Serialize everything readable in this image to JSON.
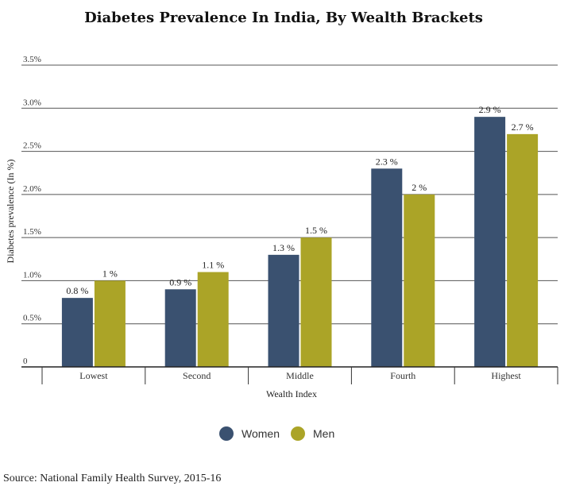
{
  "chart_data": {
    "type": "bar",
    "title": "Diabetes Prevalence In India, By Wealth Brackets",
    "xlabel": "Wealth Index",
    "ylabel": "Diabetes prevalence (In %)",
    "categories": [
      "Lowest",
      "Second",
      "Middle",
      "Fourth",
      "Highest"
    ],
    "series": [
      {
        "name": "Women",
        "color": "#3a5170",
        "values": [
          0.8,
          0.9,
          1.3,
          2.3,
          2.9
        ],
        "labels": [
          "0.8 %",
          "0.9 %",
          "1.3 %",
          "2.3 %",
          "2.9 %"
        ]
      },
      {
        "name": "Men",
        "color": "#aba427",
        "values": [
          1,
          1.1,
          1.5,
          2,
          2.7
        ],
        "labels": [
          "1 %",
          "1.1 %",
          "1.5 %",
          "2 %",
          "2.7 %"
        ]
      }
    ],
    "ylim": [
      0,
      3.5
    ],
    "yticks": [
      0,
      0.5,
      1.0,
      1.5,
      2.0,
      2.5,
      3.0,
      3.5
    ],
    "ytick_labels": [
      "0",
      "0.5%",
      "1.0%",
      "1.5%",
      "2.0%",
      "2.5%",
      "3.0%",
      "3.5%"
    ],
    "grid": true,
    "legend_position": "bottom-center"
  },
  "source_note": "Source: National Family Health Survey, 2015-16"
}
